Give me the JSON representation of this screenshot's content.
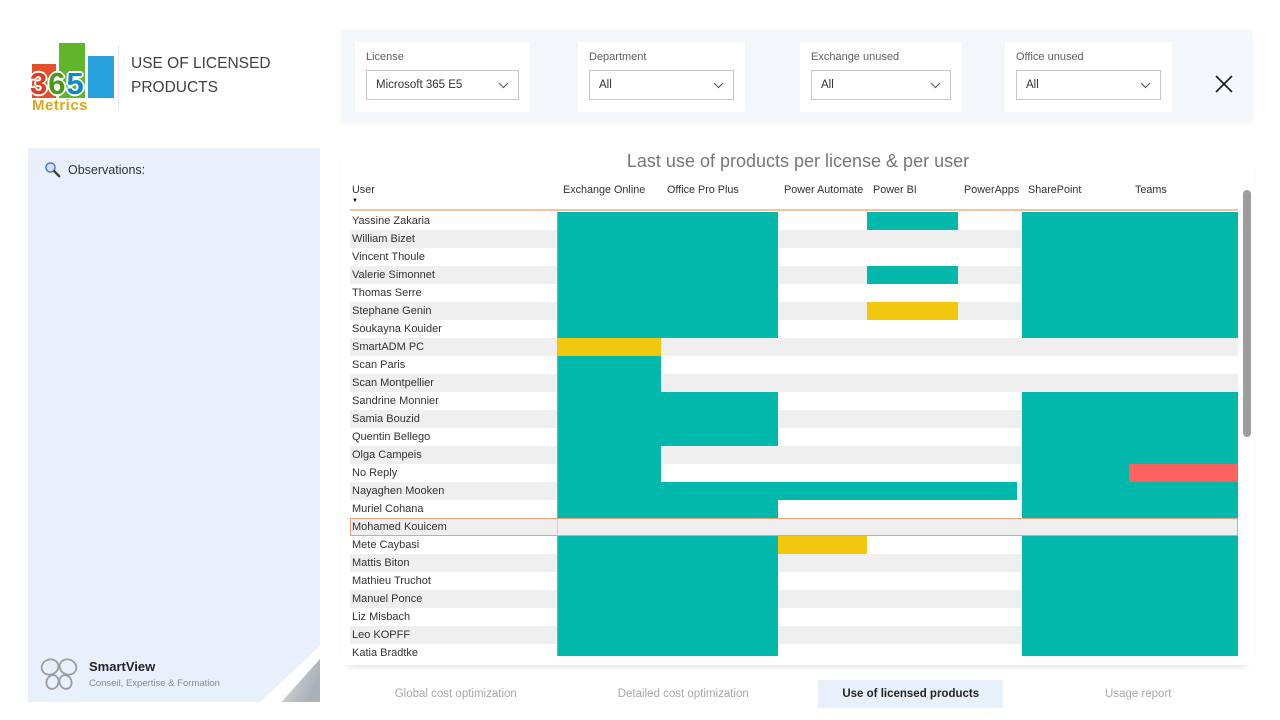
{
  "app": {
    "logo_digits": [
      "3",
      "6",
      "5"
    ],
    "logo_brand": "Metrics",
    "title": "USE OF LICENSED PRODUCTS"
  },
  "filters": [
    {
      "label": "License",
      "value": "Microsoft 365 E5"
    },
    {
      "label": "Department",
      "value": "All"
    },
    {
      "label": "Exchange unused",
      "value": "All"
    },
    {
      "label": "Office unused",
      "value": "All"
    }
  ],
  "sidebar": {
    "observations_label": "Observations:",
    "brand_name": "SmartView",
    "brand_tagline": "Conseil, Expertise & Formation"
  },
  "matrix": {
    "title": "Last use of products per license & per user",
    "user_header": "User",
    "sort_indicator": "▼",
    "products": [
      "Exchange Online",
      "Office Pro Plus",
      "Power Automate",
      "Power BI",
      "PowerApps",
      "SharePoint",
      "Teams"
    ],
    "rows": [
      {
        "user": "Yassine Zakaria",
        "cells": [
          "used",
          "used",
          null,
          "used",
          null,
          "used",
          "used"
        ]
      },
      {
        "user": "William Bizet",
        "cells": [
          "used",
          "used",
          null,
          null,
          null,
          "used",
          "used"
        ]
      },
      {
        "user": "Vincent Thoule",
        "cells": [
          "used",
          "used",
          null,
          null,
          null,
          "used",
          "used"
        ]
      },
      {
        "user": "Valerie Simonnet",
        "cells": [
          "used",
          "used",
          null,
          "used",
          null,
          "used",
          "used"
        ]
      },
      {
        "user": "Thomas Serre",
        "cells": [
          "used",
          "used",
          null,
          null,
          null,
          "used",
          "used"
        ]
      },
      {
        "user": "Stephane Genin",
        "cells": [
          "used",
          "used",
          null,
          "warning",
          null,
          "used",
          "used"
        ]
      },
      {
        "user": "Soukayna Kouider",
        "cells": [
          "used",
          "used",
          null,
          null,
          null,
          "used",
          "used"
        ]
      },
      {
        "user": "SmartADM PC",
        "cells": [
          "warning",
          null,
          null,
          null,
          null,
          null,
          null
        ]
      },
      {
        "user": "Scan Paris",
        "cells": [
          "used",
          null,
          null,
          null,
          null,
          null,
          null
        ]
      },
      {
        "user": "Scan Montpellier",
        "cells": [
          "used",
          null,
          null,
          null,
          null,
          null,
          null
        ]
      },
      {
        "user": "Sandrine Monnier",
        "cells": [
          "used",
          "used",
          null,
          null,
          null,
          "used",
          "used"
        ]
      },
      {
        "user": "Samia Bouzid",
        "cells": [
          "used",
          "used",
          null,
          null,
          null,
          "used",
          "used"
        ]
      },
      {
        "user": "Quentin Bellego",
        "cells": [
          "used",
          "used",
          null,
          null,
          null,
          "used",
          "used"
        ]
      },
      {
        "user": "Olga Campeis",
        "cells": [
          "used",
          null,
          null,
          null,
          null,
          "used",
          "used"
        ]
      },
      {
        "user": "No Reply",
        "cells": [
          "used",
          null,
          null,
          null,
          null,
          "used",
          "alert"
        ]
      },
      {
        "user": "Nayaghen Mooken",
        "cells": [
          "used",
          "used",
          "used",
          "used",
          "used",
          "used",
          "used"
        ]
      },
      {
        "user": "Muriel Cohana",
        "cells": [
          "used",
          "used",
          null,
          null,
          null,
          "used",
          "used"
        ]
      },
      {
        "user": "Mohamed Kouicem",
        "cells": [
          null,
          null,
          null,
          null,
          null,
          null,
          null
        ],
        "highlighted": true
      },
      {
        "user": "Mete Caybasi",
        "cells": [
          "used",
          "used",
          "warning",
          null,
          null,
          "used",
          "used"
        ]
      },
      {
        "user": "Mattis Biton",
        "cells": [
          "used",
          "used",
          null,
          null,
          null,
          "used",
          "used"
        ]
      },
      {
        "user": "Mathieu Truchot",
        "cells": [
          "used",
          "used",
          null,
          null,
          null,
          "used",
          "used"
        ]
      },
      {
        "user": "Manuel Ponce",
        "cells": [
          "used",
          "used",
          null,
          null,
          null,
          "used",
          "used"
        ]
      },
      {
        "user": "Liz Misbach",
        "cells": [
          "used",
          "used",
          null,
          null,
          null,
          "used",
          "used"
        ]
      },
      {
        "user": "Leo KOPFF",
        "cells": [
          "used",
          "used",
          null,
          null,
          null,
          "used",
          "used"
        ]
      },
      {
        "user": "Katia Bradtke",
        "cells": [
          "used",
          "used",
          null,
          null,
          null,
          "used",
          "used"
        ]
      }
    ]
  },
  "tabs": [
    {
      "label": "Global cost optimization",
      "active": false
    },
    {
      "label": "Detailed cost optimization",
      "active": false
    },
    {
      "label": "Use of licensed products",
      "active": true
    },
    {
      "label": "Usage report",
      "active": false
    }
  ],
  "colors": {
    "used": "#01b8aa",
    "warning": "#f2c80f",
    "alert": "#fd625e",
    "header_rule": "#f6c3a0",
    "highlight_border": "#eba17b"
  }
}
